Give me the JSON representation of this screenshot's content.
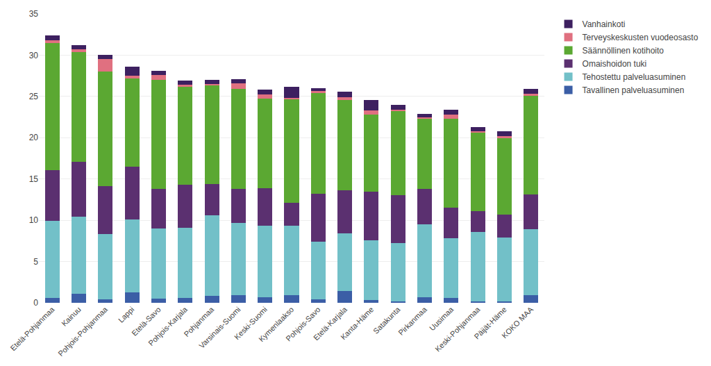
{
  "chart_data": {
    "type": "bar",
    "stacked": true,
    "categories": [
      "Etelä-Pohjanmaa",
      "Kainuu",
      "Pohjois-Pohjanmaa",
      "Lappi",
      "Etelä-Savo",
      "Pohjois-Karjala",
      "Pohjanmaa",
      "Varsinais-Suomi",
      "Keski-Suomi",
      "Kymenlaakso",
      "Pohjois-Savo",
      "Etelä-Karjala",
      "Kanta-Häme",
      "Satakunta",
      "Pirkanmaa",
      "Uusimaa",
      "Keski-Pohjanmaa",
      "Päijät-Häme",
      "KOKO MAA"
    ],
    "series": [
      {
        "name": "Tavallinen palveluasuminen",
        "color": "#3B5EA6",
        "values": [
          0.6,
          1.1,
          0.4,
          1.3,
          0.5,
          0.6,
          0.8,
          0.9,
          0.7,
          0.9,
          0.4,
          1.4,
          0.3,
          0.2,
          0.7,
          0.6,
          0.2,
          0.2,
          0.9
        ]
      },
      {
        "name": "Tehostettu palveluasuminen",
        "color": "#72C0C8",
        "values": [
          9.3,
          9.3,
          7.9,
          8.8,
          8.5,
          8.5,
          9.8,
          8.8,
          8.6,
          8.4,
          7.0,
          7.0,
          7.3,
          7.0,
          8.8,
          7.2,
          8.4,
          7.7,
          8.0
        ]
      },
      {
        "name": "Omaishoidon tuki",
        "color": "#5B3070",
        "values": [
          6.2,
          6.7,
          5.8,
          6.4,
          4.8,
          5.2,
          3.8,
          4.1,
          4.6,
          2.8,
          5.8,
          5.2,
          5.9,
          5.8,
          4.3,
          3.7,
          2.5,
          2.8,
          4.2
        ]
      },
      {
        "name": "Säännöllinen kotihoito",
        "color": "#5BA832",
        "values": [
          15.4,
          13.3,
          13.9,
          10.7,
          13.2,
          11.9,
          11.9,
          12.1,
          10.8,
          12.6,
          12.2,
          11.0,
          9.3,
          10.2,
          8.5,
          10.8,
          9.5,
          9.2,
          12.0
        ]
      },
      {
        "name": "Terveyskeskusten vuodeosasto",
        "color": "#E07080",
        "values": [
          0.3,
          0.3,
          1.5,
          0.3,
          0.6,
          0.2,
          0.2,
          0.7,
          0.5,
          0.1,
          0.3,
          0.3,
          0.5,
          0.2,
          0.2,
          0.5,
          0.2,
          0.3,
          0.2
        ]
      },
      {
        "name": "Vanhainkoti",
        "color": "#3D2060",
        "values": [
          0.6,
          0.5,
          0.5,
          1.1,
          0.5,
          0.5,
          0.5,
          0.5,
          0.6,
          1.4,
          0.3,
          0.7,
          1.3,
          0.6,
          0.4,
          0.6,
          0.5,
          0.6,
          0.6
        ]
      }
    ],
    "ylim": [
      0,
      35
    ],
    "yticks": [
      0,
      5,
      10,
      15,
      20,
      25,
      30,
      35
    ],
    "grid": true,
    "legend": "right"
  }
}
